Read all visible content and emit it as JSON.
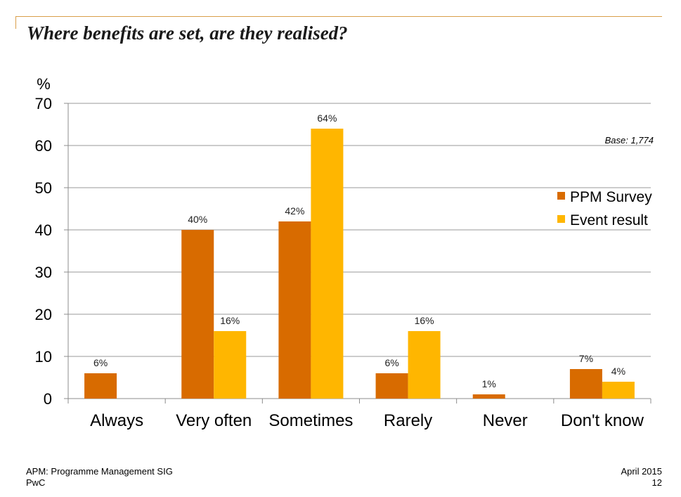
{
  "slide": {
    "title": "Where benefits are set, are they realised?"
  },
  "footer": {
    "left_line1": "APM: Programme Management SIG",
    "left_line2": "PwC",
    "right_line1": "April 2015",
    "right_line2": "12"
  },
  "chart_data": {
    "type": "bar",
    "categories": [
      "Always",
      "Very often",
      "Sometimes",
      "Rarely",
      "Never",
      "Don't know"
    ],
    "series": [
      {
        "name": "PPM Survey",
        "values": [
          6,
          40,
          42,
          6,
          1,
          7
        ],
        "labels": [
          "6%",
          "40%",
          "42%",
          "6%",
          "1%",
          "7%"
        ],
        "color": "#d86b00"
      },
      {
        "name": "Event result",
        "values": [
          null,
          16,
          64,
          16,
          null,
          4
        ],
        "labels": [
          null,
          "16%",
          "64%",
          "16%",
          null,
          "4%"
        ],
        "color": "#ffb600"
      }
    ],
    "ylabel": "%",
    "ylim": [
      0,
      70
    ],
    "yticks": [
      0,
      10,
      20,
      30,
      40,
      50,
      60,
      70
    ],
    "grid": true,
    "legend": "right",
    "annotation": "Base: 1,774"
  }
}
